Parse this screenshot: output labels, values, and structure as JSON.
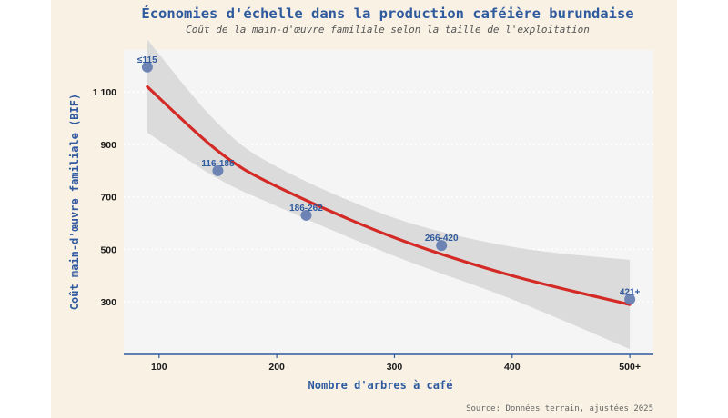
{
  "chart_data": {
    "type": "scatter",
    "title": "Économies d'échelle dans la production caféière burundaise",
    "subtitle": "Coût de la main-d'œuvre familiale selon la taille de l'exploitation",
    "xlabel": "Nombre d'arbres à café",
    "ylabel": "Coût main-d'œuvre familiale (BIF)",
    "caption": "Source: Données terrain, ajustées 2025",
    "xlim": [
      70,
      520
    ],
    "ylim": [
      100,
      1260
    ],
    "x_ticks": [
      100,
      200,
      300,
      400,
      500
    ],
    "x_tick_labels": [
      "100",
      "200",
      "300",
      "400",
      "500+"
    ],
    "y_ticks": [
      300,
      500,
      700,
      900,
      1100
    ],
    "y_tick_labels": [
      "300",
      "500",
      "700",
      "900",
      "1 100"
    ],
    "grid": "horizontal dotted",
    "points": [
      {
        "label": "≤115",
        "x": 90,
        "y": 1195
      },
      {
        "label": "116-185",
        "x": 150,
        "y": 800
      },
      {
        "label": "186-262",
        "x": 225,
        "y": 630
      },
      {
        "label": "266-420",
        "x": 340,
        "y": 515
      },
      {
        "label": "421+",
        "x": 500,
        "y": 310
      }
    ],
    "trend": {
      "type": "fitted curve",
      "x": [
        90,
        150,
        200,
        300,
        400,
        500
      ],
      "y": [
        1120,
        875,
        740,
        545,
        400,
        290
      ]
    },
    "band": {
      "x": [
        90,
        150,
        200,
        300,
        400,
        500
      ],
      "upper": [
        1300,
        980,
        815,
        620,
        510,
        460
      ],
      "lower": [
        945,
        770,
        665,
        475,
        310,
        120
      ]
    },
    "colors": {
      "points": "#5f79ae",
      "trend": "#d42a26",
      "band": "#d9d9d9",
      "panel": "#f5f5f5",
      "background": "#f8f1e4",
      "accent": "#2f5a9e"
    }
  }
}
